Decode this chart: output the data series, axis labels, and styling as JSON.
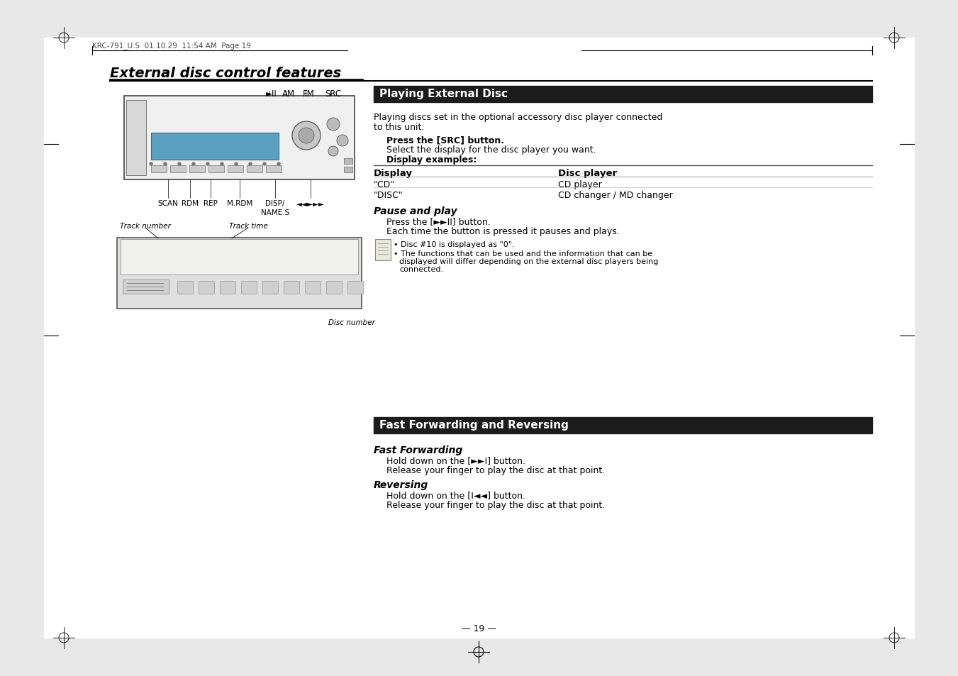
{
  "page_header": "KRC-791_U.S  01.10.29  11:54 AM  Page 19",
  "title": "External disc control features",
  "section1_header": "Playing External Disc",
  "section1_intro": "Playing discs set in the optional accessory disc player connected\nto this unit.",
  "section1_step1": "Press the [SRC] button.",
  "section1_step2": "Select the display for the disc player you want.",
  "section1_step3": "Display examples:",
  "table_col1_header": "Display",
  "table_col2_header": "Disc player",
  "table_row1_col1": "\"CD\"",
  "table_row1_col2": "CD player",
  "table_row2_col1": "\"DISC\"",
  "table_row2_col2": "CD changer / MD changer",
  "pause_play_header": "Pause and play",
  "pause_play_step1": "Press the [►►II] button.",
  "pause_play_step2": "Each time the button is pressed it pauses and plays.",
  "note_bullet1": "• Disc #10 is displayed as \"0\".",
  "note_bullet2": "• The functions that can be used and the information that can be",
  "note_bullet2b": "   displayed will differ depending on the external disc players being",
  "note_bullet2c": "   connected.",
  "section2_header": "Fast Forwarding and Reversing",
  "fast_fwd_header": "Fast Forwarding",
  "fast_fwd_step1": "Hold down on the [►►I] button.",
  "fast_fwd_step2": "Release your finger to play the disc at that point.",
  "reversing_header": "Reversing",
  "reversing_step1": "Hold down on the [I◄◄] button.",
  "reversing_step2": "Release your finger to play the disc at that point.",
  "page_number": "— 19 —",
  "label_track_number": "Track number",
  "label_track_time": "Track time",
  "label_disc_number": "Disc number",
  "label_scan": "SCAN",
  "label_rdm": "RDM",
  "label_rep": "REP",
  "label_mrdm": "M.RDM",
  "label_disp": "DISP/",
  "label_names": "NAME.S",
  "label_am": "AM",
  "label_fm": "FM",
  "label_src": "SRC",
  "label_playii": "►II",
  "header_bg": "#1a1a1a",
  "header_text_color": "#ffffff",
  "body_bg": "#ffffff",
  "text_color": "#000000"
}
